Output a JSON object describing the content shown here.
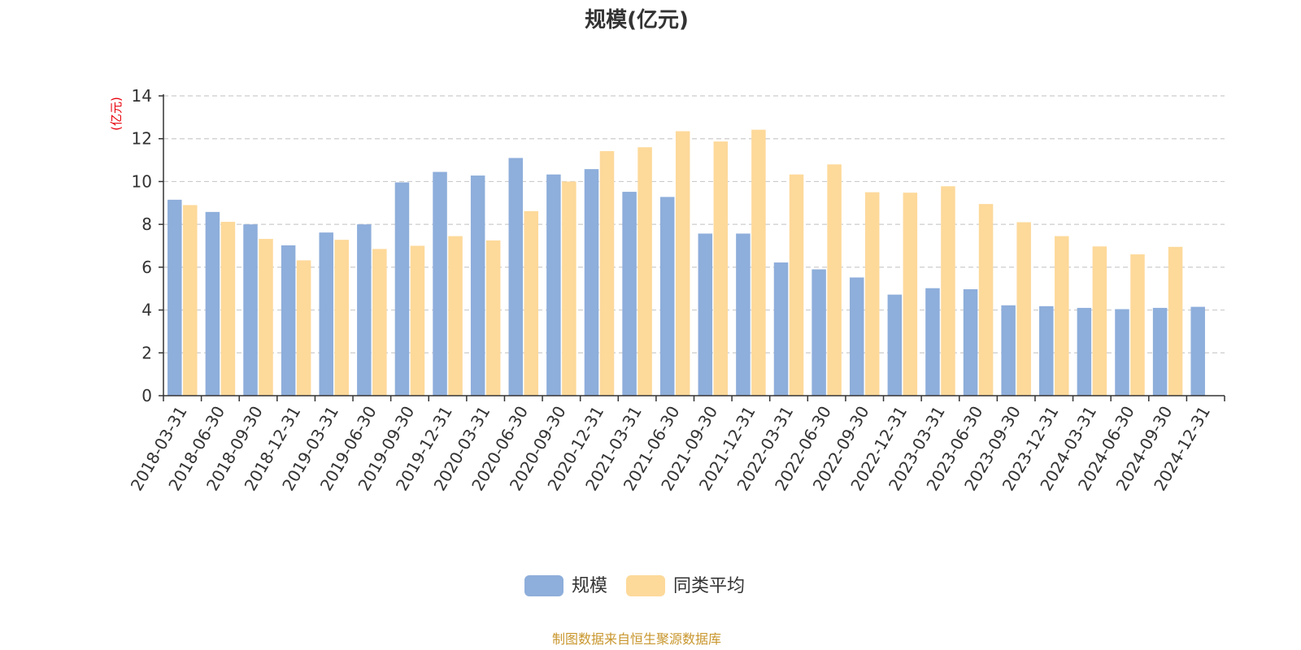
{
  "chart_data": {
    "type": "bar",
    "title": "规模(亿元)",
    "ylabel": "(亿元)",
    "xlabel": "",
    "ylim": [
      0,
      14
    ],
    "yticks": [
      0,
      2,
      4,
      6,
      8,
      10,
      12,
      14
    ],
    "grid": true,
    "legend_position": "bottom-center",
    "categories": [
      "2018-03-31",
      "2018-06-30",
      "2018-09-30",
      "2018-12-31",
      "2019-03-31",
      "2019-06-30",
      "2019-09-30",
      "2019-12-31",
      "2020-03-31",
      "2020-06-30",
      "2020-09-30",
      "2020-12-31",
      "2021-03-31",
      "2021-06-30",
      "2021-09-30",
      "2021-12-31",
      "2022-03-31",
      "2022-06-30",
      "2022-09-30",
      "2022-12-31",
      "2023-03-31",
      "2023-06-30",
      "2023-09-30",
      "2023-12-31",
      "2024-03-31",
      "2024-06-30",
      "2024-09-30",
      "2024-12-31"
    ],
    "series": [
      {
        "name": "规模",
        "color": "#8eaedb",
        "values": [
          9.15,
          8.58,
          8.0,
          7.02,
          7.62,
          8.0,
          9.96,
          10.45,
          10.28,
          11.1,
          10.33,
          10.58,
          9.52,
          9.28,
          7.57,
          7.57,
          6.22,
          5.9,
          5.52,
          4.72,
          5.02,
          4.97,
          4.22,
          4.18,
          4.1,
          4.04,
          4.1,
          4.15
        ]
      },
      {
        "name": "同类平均",
        "color": "#fdd99a",
        "values": [
          8.9,
          8.12,
          7.32,
          6.32,
          7.28,
          6.85,
          7.0,
          7.45,
          7.25,
          8.62,
          10.0,
          11.42,
          11.6,
          12.35,
          11.87,
          12.42,
          10.33,
          10.8,
          9.5,
          9.48,
          9.78,
          8.95,
          8.1,
          7.45,
          6.97,
          6.6,
          6.95,
          null
        ]
      }
    ]
  },
  "footer": {
    "source_text": "制图数据来自恒生聚源数据库"
  },
  "colors": {
    "unit_label": "#e8000b",
    "source_text": "#c8962d",
    "grid": "#cccccc",
    "axis": "#333333"
  }
}
